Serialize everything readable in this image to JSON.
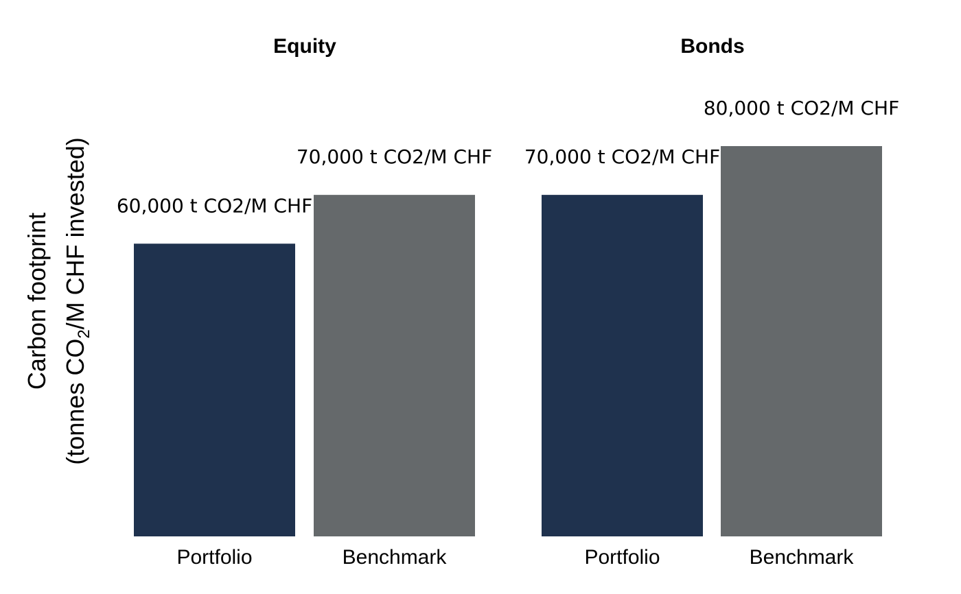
{
  "chart_data": {
    "type": "bar",
    "ylabel": {
      "line1": "Carbon footprint",
      "line2_pre": "(tonnes CO",
      "line2_sub": "2",
      "line2_post": "/M CHF invested)"
    },
    "ylim": [
      0,
      80000
    ],
    "grid": false,
    "legend": "none",
    "colors": {
      "Portfolio": "#1f324e",
      "Benchmark": "#65696b"
    },
    "facets": [
      {
        "title": "Equity",
        "categories": [
          "Portfolio",
          "Benchmark"
        ],
        "values": [
          60000,
          70000
        ],
        "labels": [
          "60,000 t CO2/M CHF",
          "70,000 t CO2/M CHF"
        ]
      },
      {
        "title": "Bonds",
        "categories": [
          "Portfolio",
          "Benchmark"
        ],
        "values": [
          70000,
          80000
        ],
        "labels": [
          "70,000 t CO2/M CHF",
          "80,000 t CO2/M CHF"
        ]
      }
    ]
  }
}
